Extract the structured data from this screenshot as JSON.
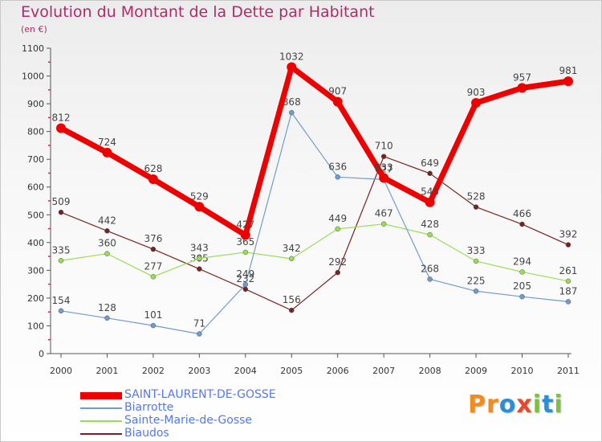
{
  "title": "Evolution du Montant de la Dette par Habitant",
  "subtitle": "(en €)",
  "logo": {
    "text": "Proxiti",
    "letters": [
      "P",
      "r",
      "o",
      "x",
      "i",
      "t",
      "i"
    ],
    "colors": [
      "#f28c1c",
      "#f28c1c",
      "#2a8fd6",
      "#e24a2a",
      "#7cc142",
      "#2a8fd6",
      "#7cc142"
    ]
  },
  "chart_data": {
    "type": "line",
    "title": "Evolution du Montant de la Dette par Habitant",
    "ylabel": "(en €)",
    "xlabel": "",
    "categories": [
      "2000",
      "2001",
      "2002",
      "2003",
      "2004",
      "2005",
      "2006",
      "2007",
      "2008",
      "2009",
      "2010",
      "2011"
    ],
    "yticks": [
      "0",
      "100",
      "200",
      "300",
      "400",
      "500",
      "600",
      "700",
      "800",
      "900",
      "1000",
      "1100"
    ],
    "ylim": [
      0,
      1100
    ],
    "grid": false,
    "legend": "bottom-left",
    "series": [
      {
        "name": "SAINT-LAURENT-DE-GOSSE",
        "color": "#ee0000",
        "values": [
          812,
          724,
          628,
          529,
          427,
          1032,
          907,
          633,
          545,
          903,
          957,
          981
        ],
        "labels": [
          "812",
          "724",
          "628",
          "529",
          "427",
          "1032",
          "907",
          "633",
          "545",
          "903",
          "957",
          "981"
        ]
      },
      {
        "name": "Biarrotte",
        "color": "#6f9ccc",
        "values": [
          154,
          128,
          101,
          71,
          249,
          868,
          636,
          627,
          268,
          225,
          205,
          187
        ],
        "labels": [
          "154",
          "128",
          "101",
          "71",
          "249",
          "868",
          "636",
          "627",
          "268",
          "225",
          "205",
          "187"
        ]
      },
      {
        "name": "Sainte-Marie-de-Gosse",
        "color": "#99dd55",
        "values": [
          335,
          360,
          277,
          343,
          365,
          342,
          449,
          467,
          428,
          333,
          294,
          261
        ],
        "labels": [
          "335",
          "360",
          "277",
          "343",
          "365",
          "342",
          "449",
          "467",
          "428",
          "333",
          "294",
          "261"
        ]
      },
      {
        "name": "Biaudos",
        "color": "#772222",
        "values": [
          509,
          442,
          376,
          305,
          232,
          156,
          292,
          710,
          649,
          528,
          466,
          392
        ],
        "labels": [
          "509",
          "442",
          "376",
          "305",
          "232",
          "156",
          "292",
          "710",
          "649",
          "528",
          "466",
          "392"
        ]
      }
    ]
  }
}
